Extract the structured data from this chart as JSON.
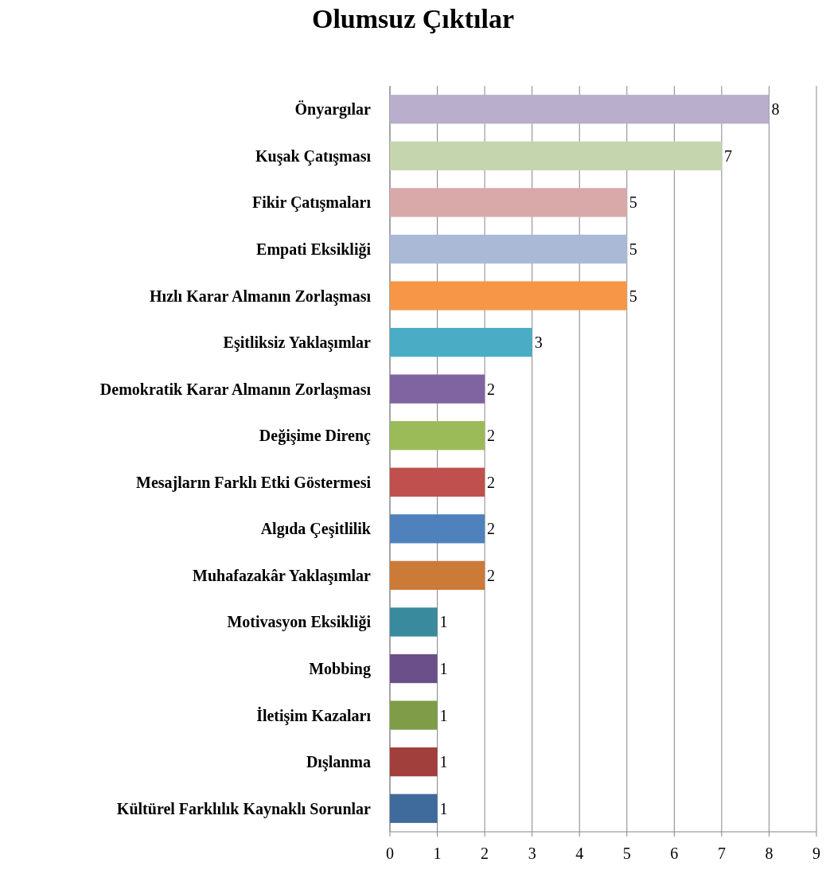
{
  "chart_data": {
    "type": "bar",
    "orientation": "horizontal",
    "title": "Olumsuz Çıktılar",
    "categories": [
      "Önyargılar",
      "Kuşak Çatışması",
      "Fikir Çatışmaları",
      "Empati Eksikliği",
      "Hızlı Karar Almanın Zorlaşması",
      "Eşitliksiz Yaklaşımlar",
      "Demokratik Karar Almanın Zorlaşması",
      "Değişime Direnç",
      "Mesajların Farklı Etki Göstermesi",
      "Algıda Çeşitlilik",
      "Muhafazakâr Yaklaşımlar",
      "Motivasyon Eksikliği",
      "Mobbing",
      "İletişim Kazaları",
      "Dışlanma",
      "Kültürel Farklılık Kaynaklı Sorunlar"
    ],
    "values": [
      8,
      7,
      5,
      5,
      5,
      3,
      2,
      2,
      2,
      2,
      2,
      1,
      1,
      1,
      1,
      1
    ],
    "colors": [
      "#b9aecb",
      "#c5d6ae",
      "#d9a9a9",
      "#a9b9d6",
      "#f79646",
      "#4bacc6",
      "#8064a2",
      "#9bbb59",
      "#c0504d",
      "#4f81bd",
      "#cc7a38",
      "#3a8a9e",
      "#6a4f8a",
      "#7f9c48",
      "#a13f3d",
      "#3e6a9c"
    ],
    "xlim": [
      0,
      9
    ],
    "xticks": [
      0,
      1,
      2,
      3,
      4,
      5,
      6,
      7,
      8,
      9
    ],
    "grid": "x",
    "data_labels": true
  }
}
